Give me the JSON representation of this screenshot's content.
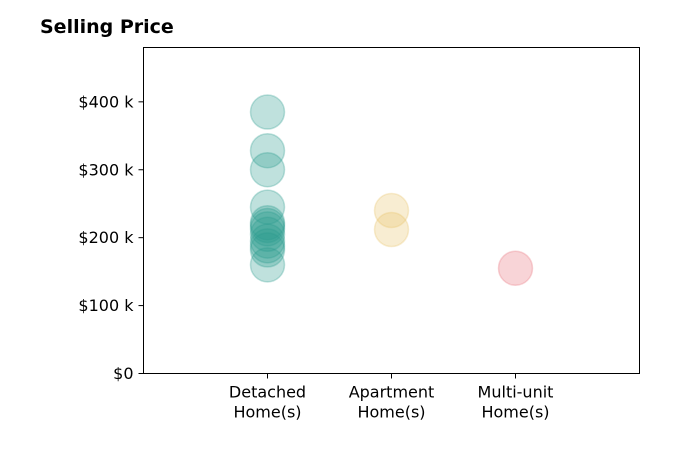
{
  "chart_data": {
    "type": "scatter",
    "title": "Selling Price",
    "xlabel": "",
    "ylabel": "",
    "categories": [
      [
        "Detached",
        "Home(s)"
      ],
      [
        "Apartment",
        "Home(s)"
      ],
      [
        "Multi-unit",
        "Home(s)"
      ]
    ],
    "ylim": [
      0,
      480000
    ],
    "yticks": [
      0,
      100000,
      200000,
      300000,
      400000
    ],
    "ytick_labels": [
      "$0",
      "$100 k",
      "$200 k",
      "$300 k",
      "$400 k"
    ],
    "grid": false,
    "series": [
      {
        "category_index": 0,
        "color": "#2a9d8f",
        "values": [
          385000,
          328000,
          300000,
          245000,
          222000,
          218000,
          213000,
          205000,
          195000,
          188000,
          182000,
          160000
        ]
      },
      {
        "category_index": 1,
        "color": "#e9c46a",
        "values": [
          240000,
          212000
        ]
      },
      {
        "category_index": 2,
        "color": "#e76f7a",
        "values": [
          155000
        ]
      }
    ]
  }
}
